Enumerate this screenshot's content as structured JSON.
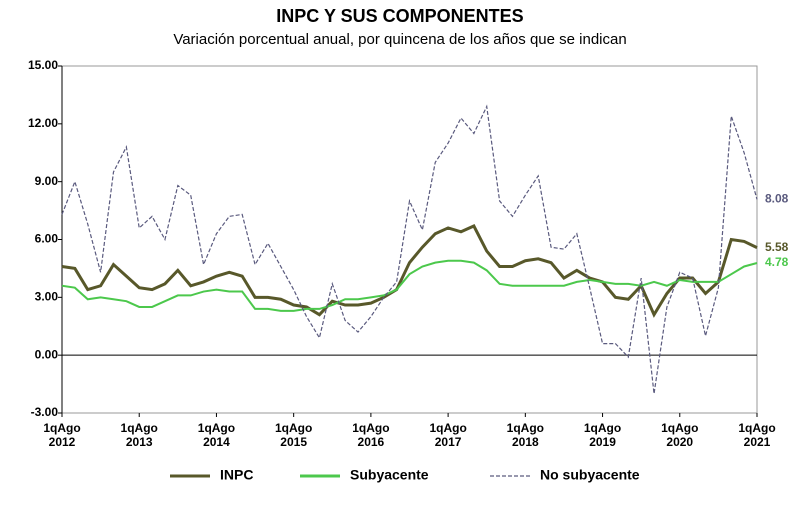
{
  "chart_data": {
    "type": "line",
    "title": "INPC Y SUS COMPONENTES",
    "subtitle": "Variación porcentual anual, por quincena de los años que se indican",
    "x": [
      0,
      4,
      8,
      12,
      16,
      20,
      24,
      28,
      32,
      36,
      40,
      44,
      48,
      52,
      56,
      60,
      64,
      68,
      72,
      76,
      80,
      84,
      88,
      92,
      96,
      100,
      104,
      108,
      112,
      116,
      120,
      124,
      128,
      132,
      136,
      140,
      144,
      148,
      152,
      156,
      160,
      164,
      168,
      172,
      176,
      180,
      184,
      188,
      192,
      196,
      200,
      204,
      208,
      212,
      216
    ],
    "xlim": [
      0,
      216
    ],
    "xticks": [
      {
        "value": 0,
        "label": "1qAgo\n2012"
      },
      {
        "value": 24,
        "label": "1qAgo\n2013"
      },
      {
        "value": 48,
        "label": "1qAgo\n2014"
      },
      {
        "value": 72,
        "label": "1qAgo\n2015"
      },
      {
        "value": 96,
        "label": "1qAgo\n2016"
      },
      {
        "value": 120,
        "label": "1qAgo\n2017"
      },
      {
        "value": 144,
        "label": "1qAgo\n2018"
      },
      {
        "value": 168,
        "label": "1qAgo\n2019"
      },
      {
        "value": 192,
        "label": "1qAgo\n2020"
      },
      {
        "value": 216,
        "label": "1qAgo\n2021"
      }
    ],
    "ylim": [
      -3,
      15
    ],
    "yticks": [
      {
        "value": -3,
        "label": "-3.00"
      },
      {
        "value": 0,
        "label": "0.00"
      },
      {
        "value": 3,
        "label": "3.00"
      },
      {
        "value": 6,
        "label": "6.00"
      },
      {
        "value": 9,
        "label": "9.00"
      },
      {
        "value": 12,
        "label": "12.00"
      },
      {
        "value": 15,
        "label": "15.00"
      }
    ],
    "legend": "bottom",
    "series": [
      {
        "name": "INPC",
        "color": "#58582a",
        "style": "solid",
        "values": [
          4.6,
          4.5,
          3.4,
          3.6,
          4.7,
          4.1,
          3.5,
          3.4,
          3.7,
          4.4,
          3.6,
          3.8,
          4.1,
          4.3,
          4.1,
          3.0,
          3.0,
          2.9,
          2.6,
          2.5,
          2.1,
          2.8,
          2.6,
          2.6,
          2.7,
          3.0,
          3.4,
          4.8,
          5.6,
          6.3,
          6.6,
          6.4,
          6.7,
          5.4,
          4.6,
          4.6,
          4.9,
          5.0,
          4.8,
          4.0,
          4.4,
          4.0,
          3.8,
          3.0,
          2.9,
          3.6,
          2.1,
          3.2,
          4.0,
          4.0,
          3.2,
          3.8,
          6.0,
          5.9,
          5.58
        ]
      },
      {
        "name": "Subyacente",
        "color": "#4cc84c",
        "style": "solid",
        "values": [
          3.6,
          3.5,
          2.9,
          3.0,
          2.9,
          2.8,
          2.5,
          2.5,
          2.8,
          3.1,
          3.1,
          3.3,
          3.4,
          3.3,
          3.3,
          2.4,
          2.4,
          2.3,
          2.3,
          2.4,
          2.4,
          2.6,
          2.9,
          2.9,
          3.0,
          3.1,
          3.4,
          4.2,
          4.6,
          4.8,
          4.9,
          4.9,
          4.8,
          4.4,
          3.7,
          3.6,
          3.6,
          3.6,
          3.6,
          3.6,
          3.8,
          3.9,
          3.8,
          3.7,
          3.7,
          3.6,
          3.8,
          3.6,
          3.9,
          3.8,
          3.8,
          3.8,
          4.2,
          4.6,
          4.78
        ]
      },
      {
        "name": "No subyacente",
        "color": "#5a5a7e",
        "style": "dashed",
        "values": [
          7.3,
          9.0,
          6.8,
          4.3,
          9.5,
          10.8,
          6.6,
          7.2,
          6.0,
          8.8,
          8.3,
          4.7,
          6.3,
          7.2,
          7.3,
          4.7,
          5.8,
          4.6,
          3.4,
          2.0,
          0.9,
          3.7,
          1.8,
          1.2,
          2.0,
          3.0,
          3.8,
          8.0,
          6.5,
          10.0,
          11.0,
          12.3,
          11.5,
          12.9,
          8.0,
          7.2,
          8.3,
          9.3,
          5.6,
          5.5,
          6.3,
          3.5,
          0.6,
          0.6,
          -0.1,
          4.0,
          -2.0,
          2.5,
          4.3,
          4.0,
          1.0,
          3.5,
          12.4,
          10.5,
          8.08
        ]
      }
    ]
  }
}
